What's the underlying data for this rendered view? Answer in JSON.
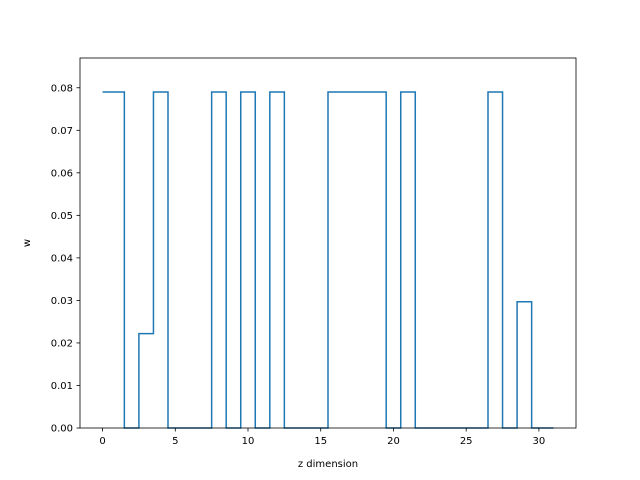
{
  "chart_data": {
    "type": "line",
    "drawstyle": "steps-mid",
    "xlabel": "z dimension",
    "ylabel": "w",
    "xlim": [
      -1.55,
      32.55
    ],
    "ylim": [
      0,
      0.087
    ],
    "xticks": [
      0,
      5,
      10,
      15,
      20,
      25,
      30
    ],
    "xtick_labels": [
      "0",
      "5",
      "10",
      "15",
      "20",
      "25",
      "30"
    ],
    "yticks": [
      0,
      0.01,
      0.02,
      0.03,
      0.04,
      0.05,
      0.06,
      0.07,
      0.08
    ],
    "ytick_labels": [
      "0.00",
      "0.01",
      "0.02",
      "0.03",
      "0.04",
      "0.05",
      "0.06",
      "0.07",
      "0.08"
    ],
    "grid": false,
    "series": [
      {
        "color": "#1f77b4",
        "x": [
          0,
          1,
          2,
          3,
          4,
          5,
          6,
          7,
          8,
          9,
          10,
          11,
          12,
          13,
          14,
          15,
          16,
          17,
          18,
          19,
          20,
          21,
          22,
          23,
          24,
          25,
          26,
          27,
          28,
          29,
          30,
          31
        ],
        "y": [
          0.079,
          0.079,
          0,
          0.0222,
          0.079,
          0,
          0,
          0,
          0.079,
          0,
          0.079,
          0,
          0.079,
          0,
          0,
          0,
          0.079,
          0.079,
          0.079,
          0.079,
          0,
          0.079,
          0,
          0,
          0,
          0,
          0,
          0.079,
          0,
          0.0297,
          0,
          0
        ]
      }
    ]
  }
}
